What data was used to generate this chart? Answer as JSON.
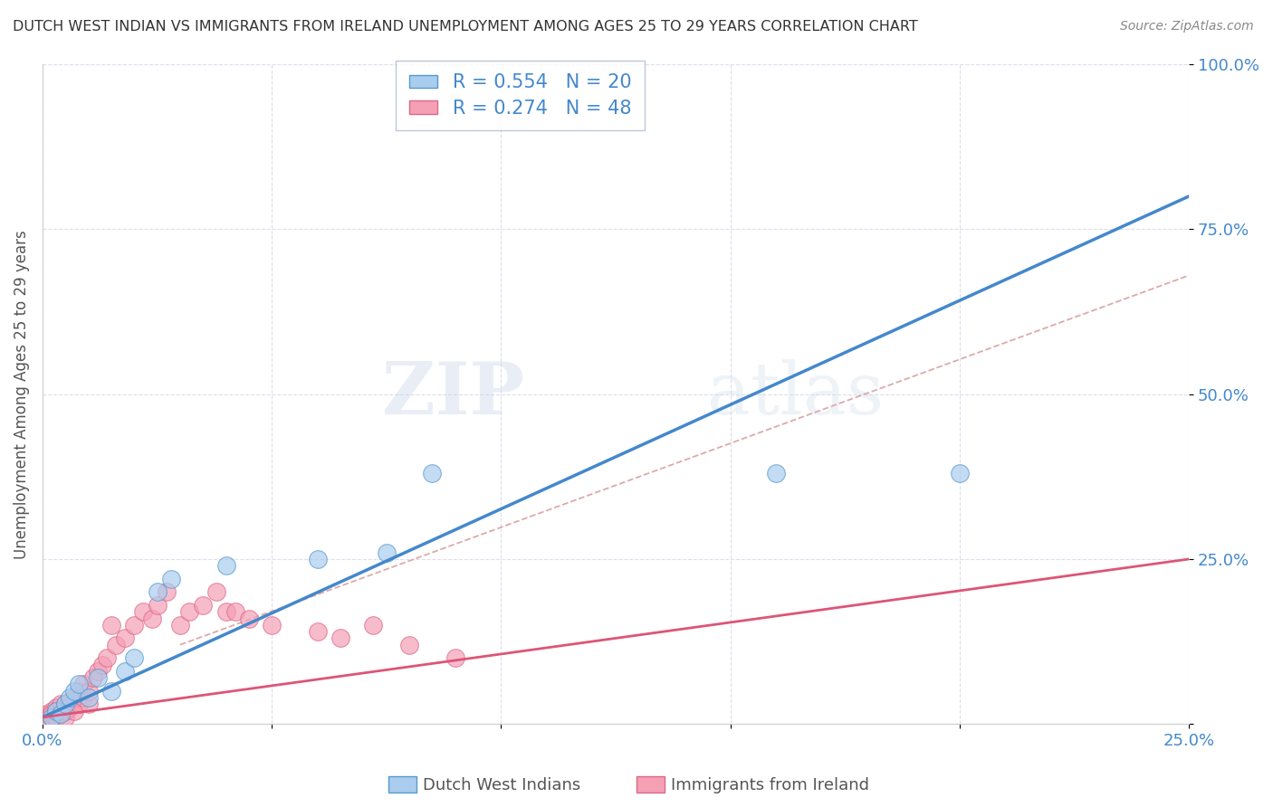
{
  "title": "DUTCH WEST INDIAN VS IMMIGRANTS FROM IRELAND UNEMPLOYMENT AMONG AGES 25 TO 29 YEARS CORRELATION CHART",
  "source": "Source: ZipAtlas.com",
  "ylabel": "Unemployment Among Ages 25 to 29 years",
  "xlim": [
    0.0,
    0.25
  ],
  "ylim": [
    0.0,
    1.0
  ],
  "xticks": [
    0.0,
    0.05,
    0.1,
    0.15,
    0.2,
    0.25
  ],
  "yticks": [
    0.0,
    0.25,
    0.5,
    0.75,
    1.0
  ],
  "blue_R": 0.554,
  "blue_N": 20,
  "pink_R": 0.274,
  "pink_N": 48,
  "blue_fill_color": "#aaccee",
  "pink_fill_color": "#f5a0b5",
  "blue_edge_color": "#5599cc",
  "pink_edge_color": "#dd6688",
  "blue_line_color": "#4488cc",
  "pink_line_color": "#dd5577",
  "ref_line_color": "#ddaaaa",
  "watermark_text": "ZIPatlas",
  "legend_label_blue": "Dutch West Indians",
  "legend_label_pink": "Immigrants from Ireland",
  "blue_scatter_x": [
    0.002,
    0.003,
    0.004,
    0.005,
    0.006,
    0.007,
    0.008,
    0.01,
    0.012,
    0.015,
    0.018,
    0.02,
    0.025,
    0.028,
    0.04,
    0.06,
    0.075,
    0.085,
    0.16,
    0.2
  ],
  "blue_scatter_y": [
    0.01,
    0.02,
    0.015,
    0.03,
    0.04,
    0.05,
    0.06,
    0.04,
    0.07,
    0.05,
    0.08,
    0.1,
    0.2,
    0.22,
    0.24,
    0.25,
    0.26,
    0.38,
    0.38,
    0.38
  ],
  "pink_scatter_x": [
    0.001,
    0.001,
    0.002,
    0.002,
    0.002,
    0.003,
    0.003,
    0.003,
    0.004,
    0.004,
    0.005,
    0.005,
    0.005,
    0.006,
    0.006,
    0.007,
    0.007,
    0.008,
    0.008,
    0.009,
    0.009,
    0.01,
    0.01,
    0.011,
    0.012,
    0.013,
    0.014,
    0.015,
    0.016,
    0.018,
    0.02,
    0.022,
    0.024,
    0.025,
    0.027,
    0.03,
    0.032,
    0.035,
    0.038,
    0.04,
    0.042,
    0.045,
    0.05,
    0.06,
    0.065,
    0.072,
    0.08,
    0.09
  ],
  "pink_scatter_y": [
    0.01,
    0.015,
    0.01,
    0.02,
    0.015,
    0.01,
    0.02,
    0.025,
    0.02,
    0.03,
    0.01,
    0.02,
    0.03,
    0.025,
    0.035,
    0.02,
    0.04,
    0.03,
    0.05,
    0.04,
    0.06,
    0.03,
    0.05,
    0.07,
    0.08,
    0.09,
    0.1,
    0.15,
    0.12,
    0.13,
    0.15,
    0.17,
    0.16,
    0.18,
    0.2,
    0.15,
    0.17,
    0.18,
    0.2,
    0.17,
    0.17,
    0.16,
    0.15,
    0.14,
    0.13,
    0.15,
    0.12,
    0.1
  ],
  "background_color": "#ffffff",
  "grid_color": "#ddddee",
  "title_color": "#333333",
  "axis_label_color": "#555555",
  "tick_color": "#4488cc",
  "legend_text_color": "#4488cc"
}
